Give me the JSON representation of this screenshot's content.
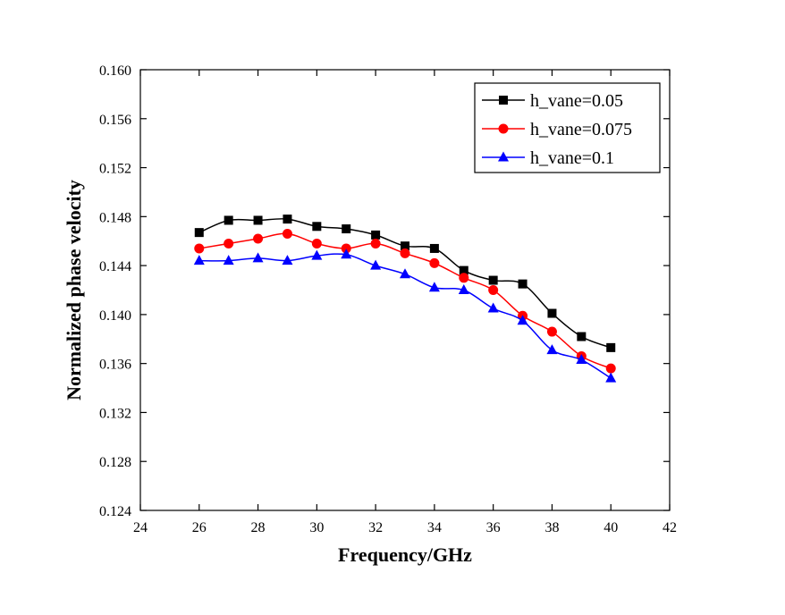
{
  "chart_data": {
    "type": "line",
    "title": "",
    "xlabel": "Frequency/GHz",
    "ylabel": "Normalized phase velocity",
    "xlim": [
      24,
      42
    ],
    "ylim": [
      0.124,
      0.16
    ],
    "xticks": [
      "24",
      "26",
      "28",
      "30",
      "32",
      "34",
      "36",
      "38",
      "40",
      "42"
    ],
    "yticks": [
      "0.124",
      "0.128",
      "0.132",
      "0.136",
      "0.140",
      "0.144",
      "0.148",
      "0.152",
      "0.156",
      "0.160"
    ],
    "grid": false,
    "legend_position": "top-right",
    "x": [
      26,
      27,
      28,
      29,
      30,
      31,
      32,
      33,
      34,
      35,
      36,
      37,
      38,
      39,
      40
    ],
    "series": [
      {
        "name": "h_vane=0.05",
        "color": "#000000",
        "marker": "square",
        "values": [
          0.1467,
          0.1477,
          0.1477,
          0.1478,
          0.1472,
          0.147,
          0.1465,
          0.1456,
          0.1454,
          0.1436,
          0.1428,
          0.1425,
          0.1401,
          0.1382,
          0.1373
        ]
      },
      {
        "name": "h_vane=0.075",
        "color": "#ff0000",
        "marker": "circle",
        "values": [
          0.1454,
          0.1458,
          0.1462,
          0.1466,
          0.1458,
          0.1454,
          0.1458,
          0.145,
          0.1442,
          0.143,
          0.142,
          0.1399,
          0.1386,
          0.1366,
          0.1356
        ]
      },
      {
        "name": "h_vane=0.1",
        "color": "#0000ff",
        "marker": "triangle",
        "values": [
          0.1444,
          0.1444,
          0.1446,
          0.1444,
          0.1448,
          0.1449,
          0.144,
          0.1433,
          0.1422,
          0.142,
          0.1405,
          0.1395,
          0.1371,
          0.1363,
          0.1348
        ]
      }
    ]
  }
}
